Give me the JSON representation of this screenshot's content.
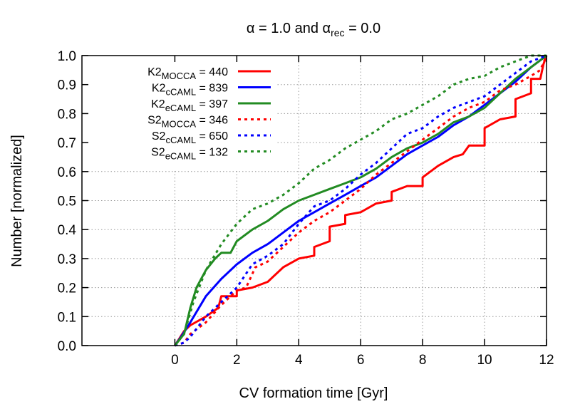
{
  "chart_data": {
    "type": "line",
    "title": {
      "prefix": "α = 1.0 and α",
      "sub": "rec",
      "suffix": " = 0.0"
    },
    "xlabel": "CV formation time [Gyr]",
    "ylabel": "Number [normalized]",
    "xlim": [
      -3,
      12
    ],
    "ylim": [
      0,
      1
    ],
    "xticks": [
      0,
      2,
      4,
      6,
      8,
      10,
      12
    ],
    "xtick_labels": [
      "0",
      "2",
      "4",
      "6",
      "8",
      "10",
      "12"
    ],
    "yticks": [
      0,
      0.1,
      0.2,
      0.3,
      0.4,
      0.5,
      0.6,
      0.7,
      0.8,
      0.9,
      1.0
    ],
    "ytick_labels": [
      "0.0",
      "0.1",
      "0.2",
      "0.3",
      "0.4",
      "0.5",
      "0.6",
      "0.7",
      "0.8",
      "0.9",
      "1.0"
    ],
    "grid": true,
    "legend_position": "top-left",
    "series": [
      {
        "name": "K2",
        "sub": "MOCCA",
        "count": "= 440",
        "color": "#ff0000",
        "dash": "solid",
        "x": [
          0,
          0.3,
          0.5,
          1,
          1.4,
          1.5,
          2,
          2,
          2.5,
          3,
          3.5,
          4,
          4.5,
          4.5,
          5,
          5,
          5.5,
          5.5,
          6,
          6.5,
          7,
          7,
          7.5,
          8,
          8,
          8.5,
          9,
          9.3,
          9.5,
          10,
          10,
          10.5,
          11,
          11,
          11.5,
          11.5,
          11.8,
          11.9,
          12
        ],
        "y": [
          0,
          0.05,
          0.07,
          0.1,
          0.13,
          0.17,
          0.17,
          0.19,
          0.2,
          0.22,
          0.27,
          0.3,
          0.31,
          0.34,
          0.36,
          0.41,
          0.42,
          0.45,
          0.46,
          0.49,
          0.5,
          0.53,
          0.55,
          0.55,
          0.58,
          0.62,
          0.65,
          0.66,
          0.69,
          0.69,
          0.75,
          0.78,
          0.79,
          0.85,
          0.87,
          0.92,
          0.92,
          0.97,
          1
        ]
      },
      {
        "name": "K2",
        "sub": "cCAML",
        "count": "= 839",
        "color": "#0000ff",
        "dash": "solid",
        "x": [
          0,
          0.2,
          0.5,
          1,
          1.5,
          2,
          2.5,
          3,
          3.5,
          4,
          4.5,
          5,
          5.5,
          6,
          6.5,
          7,
          7.5,
          8,
          8.5,
          9,
          9.5,
          10,
          10.5,
          11,
          11.5,
          12
        ],
        "y": [
          0,
          0.03,
          0.08,
          0.17,
          0.23,
          0.28,
          0.32,
          0.35,
          0.39,
          0.43,
          0.46,
          0.49,
          0.52,
          0.55,
          0.58,
          0.62,
          0.66,
          0.69,
          0.72,
          0.76,
          0.79,
          0.83,
          0.87,
          0.91,
          0.96,
          1
        ]
      },
      {
        "name": "K2",
        "sub": "eCAML",
        "count": "= 397",
        "color": "#228b22",
        "dash": "solid",
        "x": [
          0,
          0.3,
          0.5,
          0.7,
          1,
          1.3,
          1.5,
          1.8,
          2,
          2.5,
          3,
          3.5,
          4,
          4.5,
          5,
          5.5,
          6,
          6.5,
          7,
          7.5,
          8,
          8.5,
          9,
          9.5,
          10,
          10.5,
          11,
          11.5,
          12
        ],
        "y": [
          0,
          0.04,
          0.13,
          0.2,
          0.26,
          0.3,
          0.32,
          0.32,
          0.36,
          0.4,
          0.43,
          0.47,
          0.5,
          0.52,
          0.54,
          0.56,
          0.58,
          0.61,
          0.65,
          0.68,
          0.7,
          0.73,
          0.77,
          0.79,
          0.82,
          0.87,
          0.92,
          0.96,
          1
        ]
      },
      {
        "name": "S2",
        "sub": "MOCCA",
        "count": "= 346",
        "color": "#ff0000",
        "dash": "dotted",
        "x": [
          0,
          0.3,
          0.5,
          1,
          1.5,
          2,
          2.3,
          2.6,
          3,
          3.5,
          4,
          4.5,
          5,
          5.5,
          6,
          6.5,
          7,
          7.5,
          8,
          8.5,
          9,
          9.5,
          10,
          10.5,
          11,
          11.5,
          11.8,
          12
        ],
        "y": [
          0,
          0.01,
          0.04,
          0.08,
          0.14,
          0.19,
          0.2,
          0.27,
          0.29,
          0.34,
          0.39,
          0.43,
          0.46,
          0.5,
          0.54,
          0.59,
          0.63,
          0.67,
          0.71,
          0.75,
          0.79,
          0.82,
          0.84,
          0.88,
          0.9,
          0.93,
          0.95,
          1
        ]
      },
      {
        "name": "S2",
        "sub": "cCAML",
        "count": "= 650",
        "color": "#0000ff",
        "dash": "dotted",
        "x": [
          0,
          0.3,
          0.5,
          1,
          1.5,
          2,
          2.5,
          3,
          3.5,
          4,
          4.5,
          5,
          5.5,
          6,
          6.5,
          7,
          7.5,
          8,
          8.5,
          9,
          9.5,
          10,
          10.5,
          11,
          11.5,
          12
        ],
        "y": [
          0,
          0.01,
          0.03,
          0.1,
          0.15,
          0.2,
          0.28,
          0.31,
          0.35,
          0.42,
          0.48,
          0.5,
          0.54,
          0.59,
          0.63,
          0.68,
          0.73,
          0.75,
          0.79,
          0.82,
          0.84,
          0.86,
          0.9,
          0.94,
          0.98,
          1
        ]
      },
      {
        "name": "S2",
        "sub": "eCAML",
        "count": "= 132",
        "color": "#228b22",
        "dash": "dotted",
        "x": [
          0,
          0.3,
          0.6,
          1,
          1.5,
          2,
          2.5,
          3,
          3.5,
          4,
          4.5,
          5,
          5.5,
          6,
          6.5,
          7,
          7.5,
          8,
          8.5,
          9,
          9.5,
          10,
          10.5,
          11,
          11.5,
          12
        ],
        "y": [
          0,
          0.04,
          0.15,
          0.26,
          0.35,
          0.42,
          0.47,
          0.49,
          0.52,
          0.56,
          0.61,
          0.64,
          0.68,
          0.71,
          0.74,
          0.78,
          0.8,
          0.83,
          0.86,
          0.9,
          0.92,
          0.93,
          0.96,
          0.98,
          1,
          1
        ]
      }
    ]
  }
}
